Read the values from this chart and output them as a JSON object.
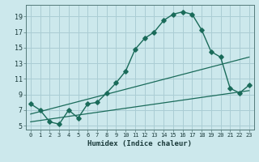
{
  "xlabel": "Humidex (Indice chaleur)",
  "bg_color": "#cce8ec",
  "grid_color": "#aacdd4",
  "line_color": "#1a6b5a",
  "curve1_x": [
    0,
    1,
    2,
    3,
    4,
    5,
    6,
    7,
    8,
    9,
    10,
    11,
    12,
    13,
    14,
    15,
    16,
    17,
    18,
    19,
    20,
    21,
    22,
    23
  ],
  "curve1_y": [
    7.8,
    7.0,
    5.5,
    5.2,
    7.0,
    6.0,
    7.8,
    8.0,
    9.2,
    10.5,
    12.0,
    14.8,
    16.2,
    17.0,
    18.5,
    19.3,
    19.6,
    19.3,
    17.3,
    14.5,
    13.8,
    9.8,
    9.2,
    10.2
  ],
  "line1_x": [
    0,
    23
  ],
  "line1_y": [
    5.5,
    9.5
  ],
  "line2_x": [
    0,
    23
  ],
  "line2_y": [
    6.5,
    13.8
  ],
  "xlim_min": -0.5,
  "xlim_max": 23.5,
  "ylim_min": 4.5,
  "ylim_max": 20.5,
  "yticks": [
    5,
    7,
    9,
    11,
    13,
    15,
    17,
    19
  ],
  "xticks": [
    0,
    1,
    2,
    3,
    4,
    5,
    6,
    7,
    8,
    9,
    10,
    11,
    12,
    13,
    14,
    15,
    16,
    17,
    18,
    19,
    20,
    21,
    22,
    23
  ]
}
